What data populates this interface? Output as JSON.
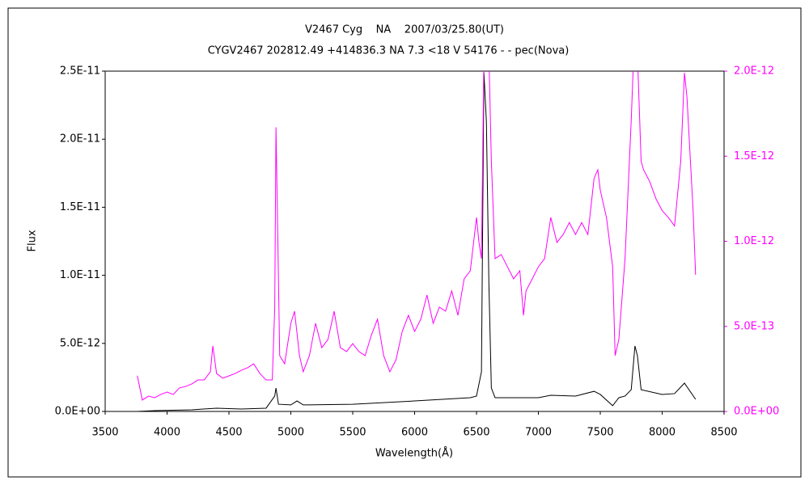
{
  "chart_data": {
    "type": "line",
    "title": "V2467 Cyg    NA    2007/03/25.80(UT)",
    "subtitle": "CYGV2467 202812.49 +414836.3 NA 7.3 <18 V 54176 - - pec(Nova)",
    "xlabel": "Wavelength(Å)",
    "ylabel": "Flux",
    "xlim": [
      3500,
      8500
    ],
    "xticks": [
      3500,
      4000,
      4500,
      5000,
      5500,
      6000,
      6500,
      7000,
      7500,
      8000,
      8500
    ],
    "ylim": [
      0,
      2.5e-11
    ],
    "yticks": [
      {
        "value": 0,
        "label": "0.0E+00"
      },
      {
        "value": 5e-12,
        "label": "5.0E-12"
      },
      {
        "value": 1e-11,
        "label": "1.0E-11"
      },
      {
        "value": 1.5e-11,
        "label": "1.5E-11"
      },
      {
        "value": 2e-11,
        "label": "2.0E-11"
      },
      {
        "value": 2.5e-11,
        "label": "2.5E-11"
      }
    ],
    "y2lim": [
      0,
      2e-12
    ],
    "y2ticks": [
      {
        "value": 0,
        "label": "0.0E+00"
      },
      {
        "value": 5e-13,
        "label": "5.0E-13"
      },
      {
        "value": 1e-12,
        "label": "1.0E-12"
      },
      {
        "value": 1.5e-12,
        "label": "1.5E-12"
      },
      {
        "value": 2e-12,
        "label": "2.0E-12"
      }
    ],
    "y2color": "#ff00ff",
    "series": [
      {
        "color": "#000000",
        "axis": "y",
        "x": [
          3760,
          3900,
          4200,
          4400,
          4600,
          4800,
          4870,
          4880,
          4900,
          5000,
          5050,
          5100,
          5500,
          6000,
          6450,
          6500,
          6540,
          6560,
          6580,
          6600,
          6620,
          6650,
          7000,
          7100,
          7300,
          7450,
          7500,
          7600,
          7650,
          7700,
          7750,
          7780,
          7800,
          7830,
          8000,
          8100,
          8180,
          8270
        ],
        "values": [
          0,
          5.9e-14,
          1.2e-13,
          2.4e-13,
          1.8e-13,
          2.4e-13,
          1.13e-12,
          1.72e-12,
          5.3e-13,
          4.8e-13,
          7.7e-13,
          4.8e-13,
          5.3e-13,
          7.7e-13,
          1.01e-12,
          1.13e-12,
          2.91e-12,
          2.49e-11,
          2.13e-11,
          9.44e-12,
          1.72e-12,
          1.01e-12,
          1.01e-12,
          1.19e-12,
          1.13e-12,
          1.48e-12,
          1.25e-12,
          4.2e-13,
          1.01e-12,
          1.13e-12,
          1.6e-12,
          4.81e-12,
          4.1e-12,
          1.6e-12,
          1.25e-12,
          1.31e-12,
          2.08e-12,
          8.9e-13
        ]
      },
      {
        "color": "#ff00ff",
        "axis": "y2",
        "x": [
          3760,
          3800,
          3850,
          3900,
          3950,
          4000,
          4050,
          4100,
          4150,
          4200,
          4250,
          4300,
          4350,
          4370,
          4400,
          4450,
          4500,
          4550,
          4600,
          4650,
          4700,
          4750,
          4800,
          4850,
          4870,
          4880,
          4890,
          4910,
          4950,
          5000,
          5030,
          5070,
          5100,
          5150,
          5200,
          5250,
          5300,
          5350,
          5400,
          5450,
          5500,
          5550,
          5600,
          5650,
          5700,
          5750,
          5800,
          5850,
          5900,
          5950,
          6000,
          6050,
          6100,
          6150,
          6200,
          6250,
          6300,
          6350,
          6400,
          6450,
          6500,
          6520,
          6540,
          6560,
          6600,
          6620,
          6650,
          6700,
          6750,
          6800,
          6850,
          6880,
          6900,
          6950,
          7000,
          7050,
          7100,
          7150,
          7200,
          7250,
          7300,
          7350,
          7400,
          7450,
          7480,
          7500,
          7550,
          7600,
          7620,
          7650,
          7700,
          7750,
          7770,
          7800,
          7830,
          7850,
          7900,
          7950,
          8000,
          8050,
          8100,
          8150,
          8180,
          8200,
          8250,
          8270
        ],
        "values": [
          2.1e-13,
          6.7e-14,
          9e-14,
          8.1e-14,
          1e-13,
          1.14e-13,
          1e-13,
          1.38e-13,
          1.47e-13,
          1.62e-13,
          1.85e-13,
          1.85e-13,
          2.33e-13,
          3.85e-13,
          2.23e-13,
          1.95e-13,
          2.09e-13,
          2.23e-13,
          2.42e-13,
          2.57e-13,
          2.8e-13,
          2.23e-13,
          1.85e-13,
          1.85e-13,
          6.13e-13,
          1.67e-12,
          1.23e-12,
          3.28e-13,
          2.8e-13,
          5.18e-13,
          5.89e-13,
          3.28e-13,
          2.33e-13,
          3.28e-13,
          5.18e-13,
          3.75e-13,
          4.23e-13,
          5.89e-13,
          3.75e-13,
          3.52e-13,
          3.99e-13,
          3.52e-13,
          3.28e-13,
          4.47e-13,
          5.42e-13,
          3.28e-13,
          2.33e-13,
          3.04e-13,
          4.7e-13,
          5.65e-13,
          4.7e-13,
          5.42e-13,
          6.84e-13,
          5.18e-13,
          6.13e-13,
          5.89e-13,
          7.08e-13,
          5.65e-13,
          7.79e-13,
          8.27e-13,
          1.14e-12,
          9.93e-13,
          8.98e-13,
          2.1e-12,
          2.1e-12,
          1.47e-12,
          8.98e-13,
          9.22e-13,
          8.5e-13,
          7.79e-13,
          8.27e-13,
          5.65e-13,
          7.08e-13,
          7.79e-13,
          8.5e-13,
          8.98e-13,
          1.14e-12,
          9.93e-13,
          1.04e-12,
          1.11e-12,
          1.04e-12,
          1.11e-12,
          1.04e-12,
          1.37e-12,
          1.42e-12,
          1.3e-12,
          1.14e-12,
          8.5e-13,
          3.28e-13,
          4.23e-13,
          8.98e-13,
          1.71e-12,
          2.1e-12,
          2.1e-12,
          1.47e-12,
          1.42e-12,
          1.35e-12,
          1.25e-12,
          1.18e-12,
          1.14e-12,
          1.09e-12,
          1.47e-12,
          1.99e-12,
          1.85e-12,
          1.18e-12,
          8.03e-13
        ]
      }
    ]
  }
}
